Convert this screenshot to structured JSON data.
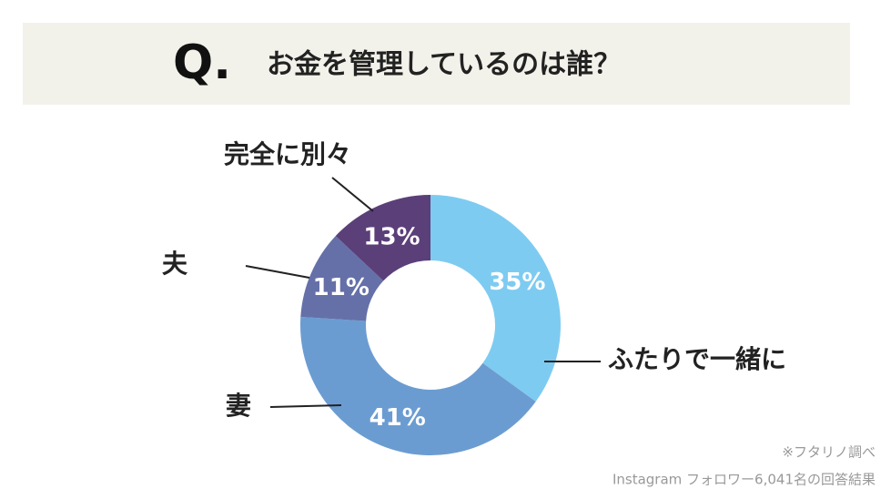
{
  "chart_data": {
    "type": "donut",
    "q_label": "Q.",
    "title": "お金を管理しているのは誰？",
    "categories": [
      "ふたりで一緒に",
      "妻",
      "夫",
      "完全に別々"
    ],
    "values": [
      35,
      41,
      11,
      13
    ],
    "value_labels": [
      "35%",
      "41%",
      "11%",
      "13%"
    ],
    "colors": [
      "#7ecbf1",
      "#6b9cd1",
      "#6570a8",
      "#5b3f79"
    ],
    "notes": [
      "※フタリノ調べ",
      "Instagram フォロワー6,041名の回答結果"
    ]
  }
}
